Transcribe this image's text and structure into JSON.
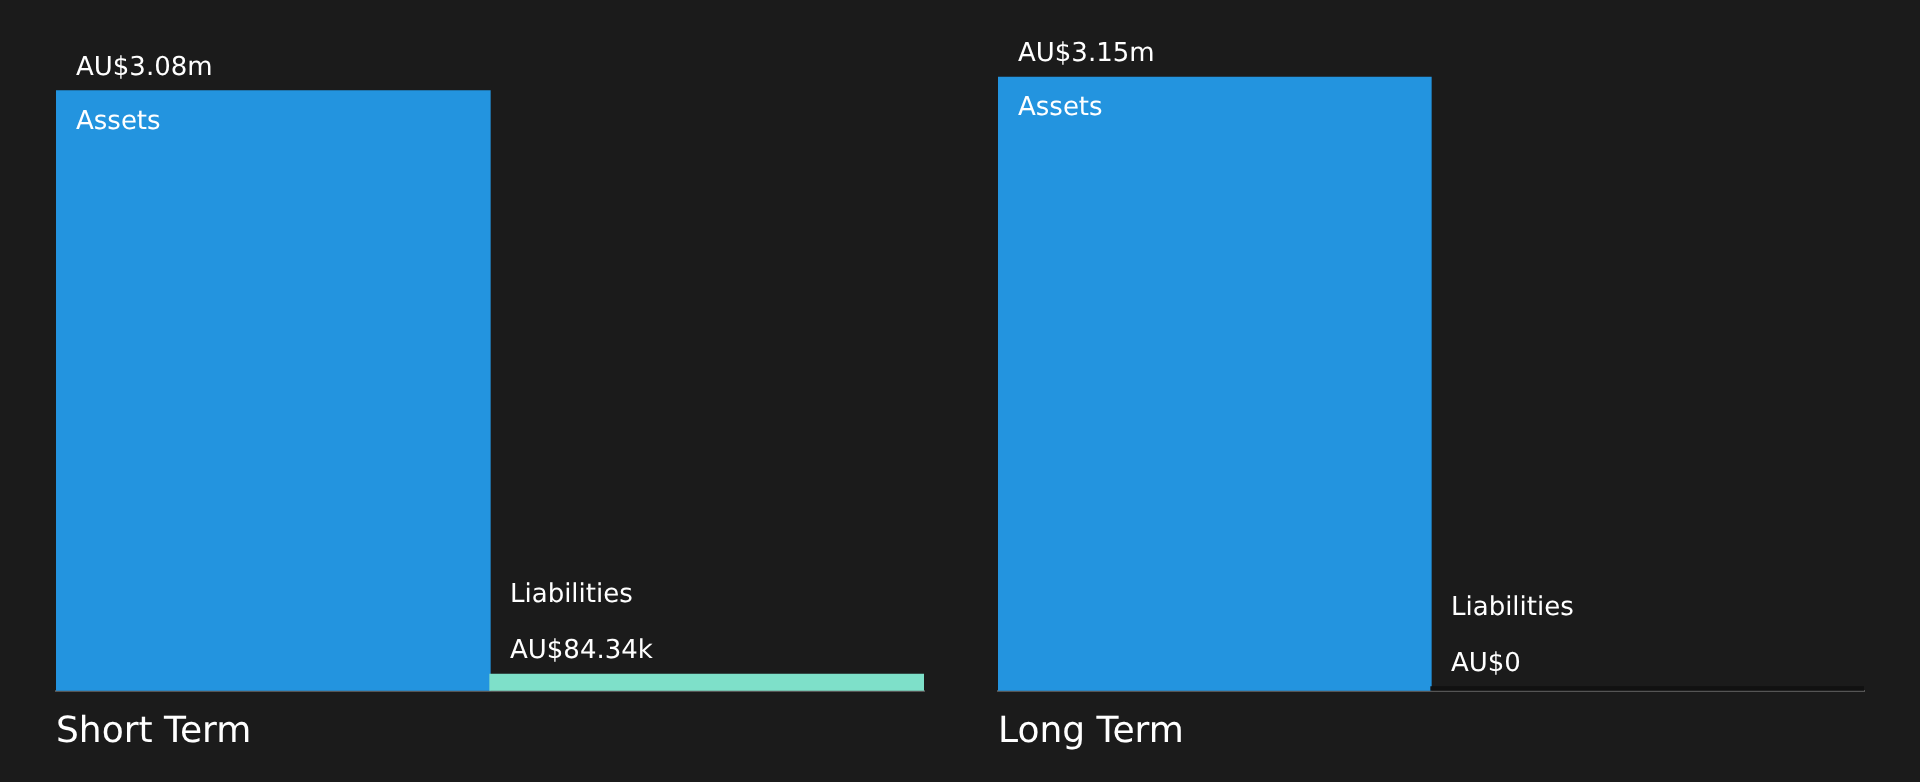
{
  "chart_data": [
    {
      "type": "bar",
      "title": "Short Term",
      "categories": [
        "Assets",
        "Liabilities"
      ],
      "values": [
        3080000,
        84340
      ],
      "colors": [
        "#2394df",
        "#7ee0c9"
      ],
      "value_labels": [
        "AU$3.08m",
        "AU$84.34k"
      ]
    },
    {
      "type": "bar",
      "title": "Long Term",
      "categories": [
        "Assets",
        "Liabilities"
      ],
      "values": [
        3150000,
        0
      ],
      "colors": [
        "#2394df",
        "#111111"
      ],
      "value_labels": [
        "AU$3.15m",
        "AU$0"
      ]
    }
  ]
}
